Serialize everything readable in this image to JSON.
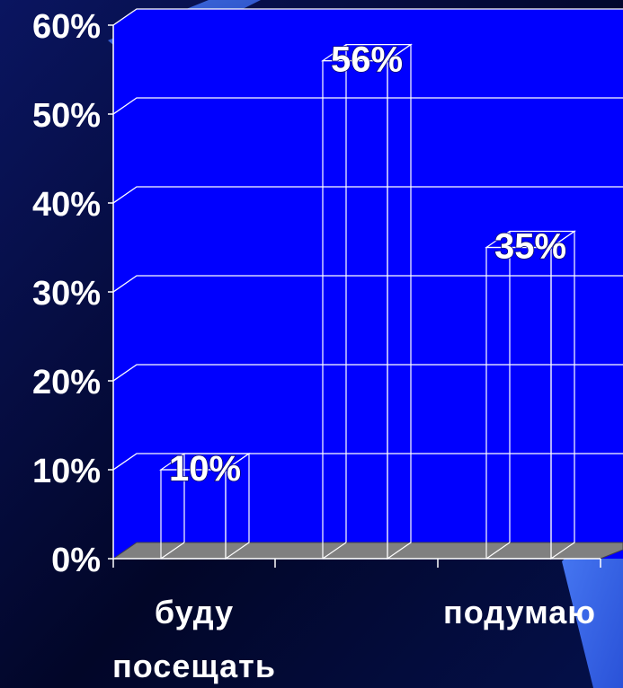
{
  "chart_data": {
    "type": "bar",
    "categories": [
      "буду посещать",
      "",
      "подумаю"
    ],
    "values": [
      10,
      56,
      35
    ],
    "data_labels": [
      "10%",
      "56%",
      "35%"
    ],
    "y_ticks": [
      "0%",
      "10%",
      "20%",
      "30%",
      "40%",
      "50%",
      "60%"
    ],
    "ylim": [
      0,
      60
    ],
    "grid": true,
    "title": "",
    "xlabel": "",
    "ylabel": ""
  },
  "colors": {
    "background": "#050a3a",
    "plot_wall": "#0000ff",
    "floor": "#808080",
    "gridline": "#ffffff",
    "bar_outline": "#ffffff",
    "accent_stripe": "#3a6ff0"
  }
}
